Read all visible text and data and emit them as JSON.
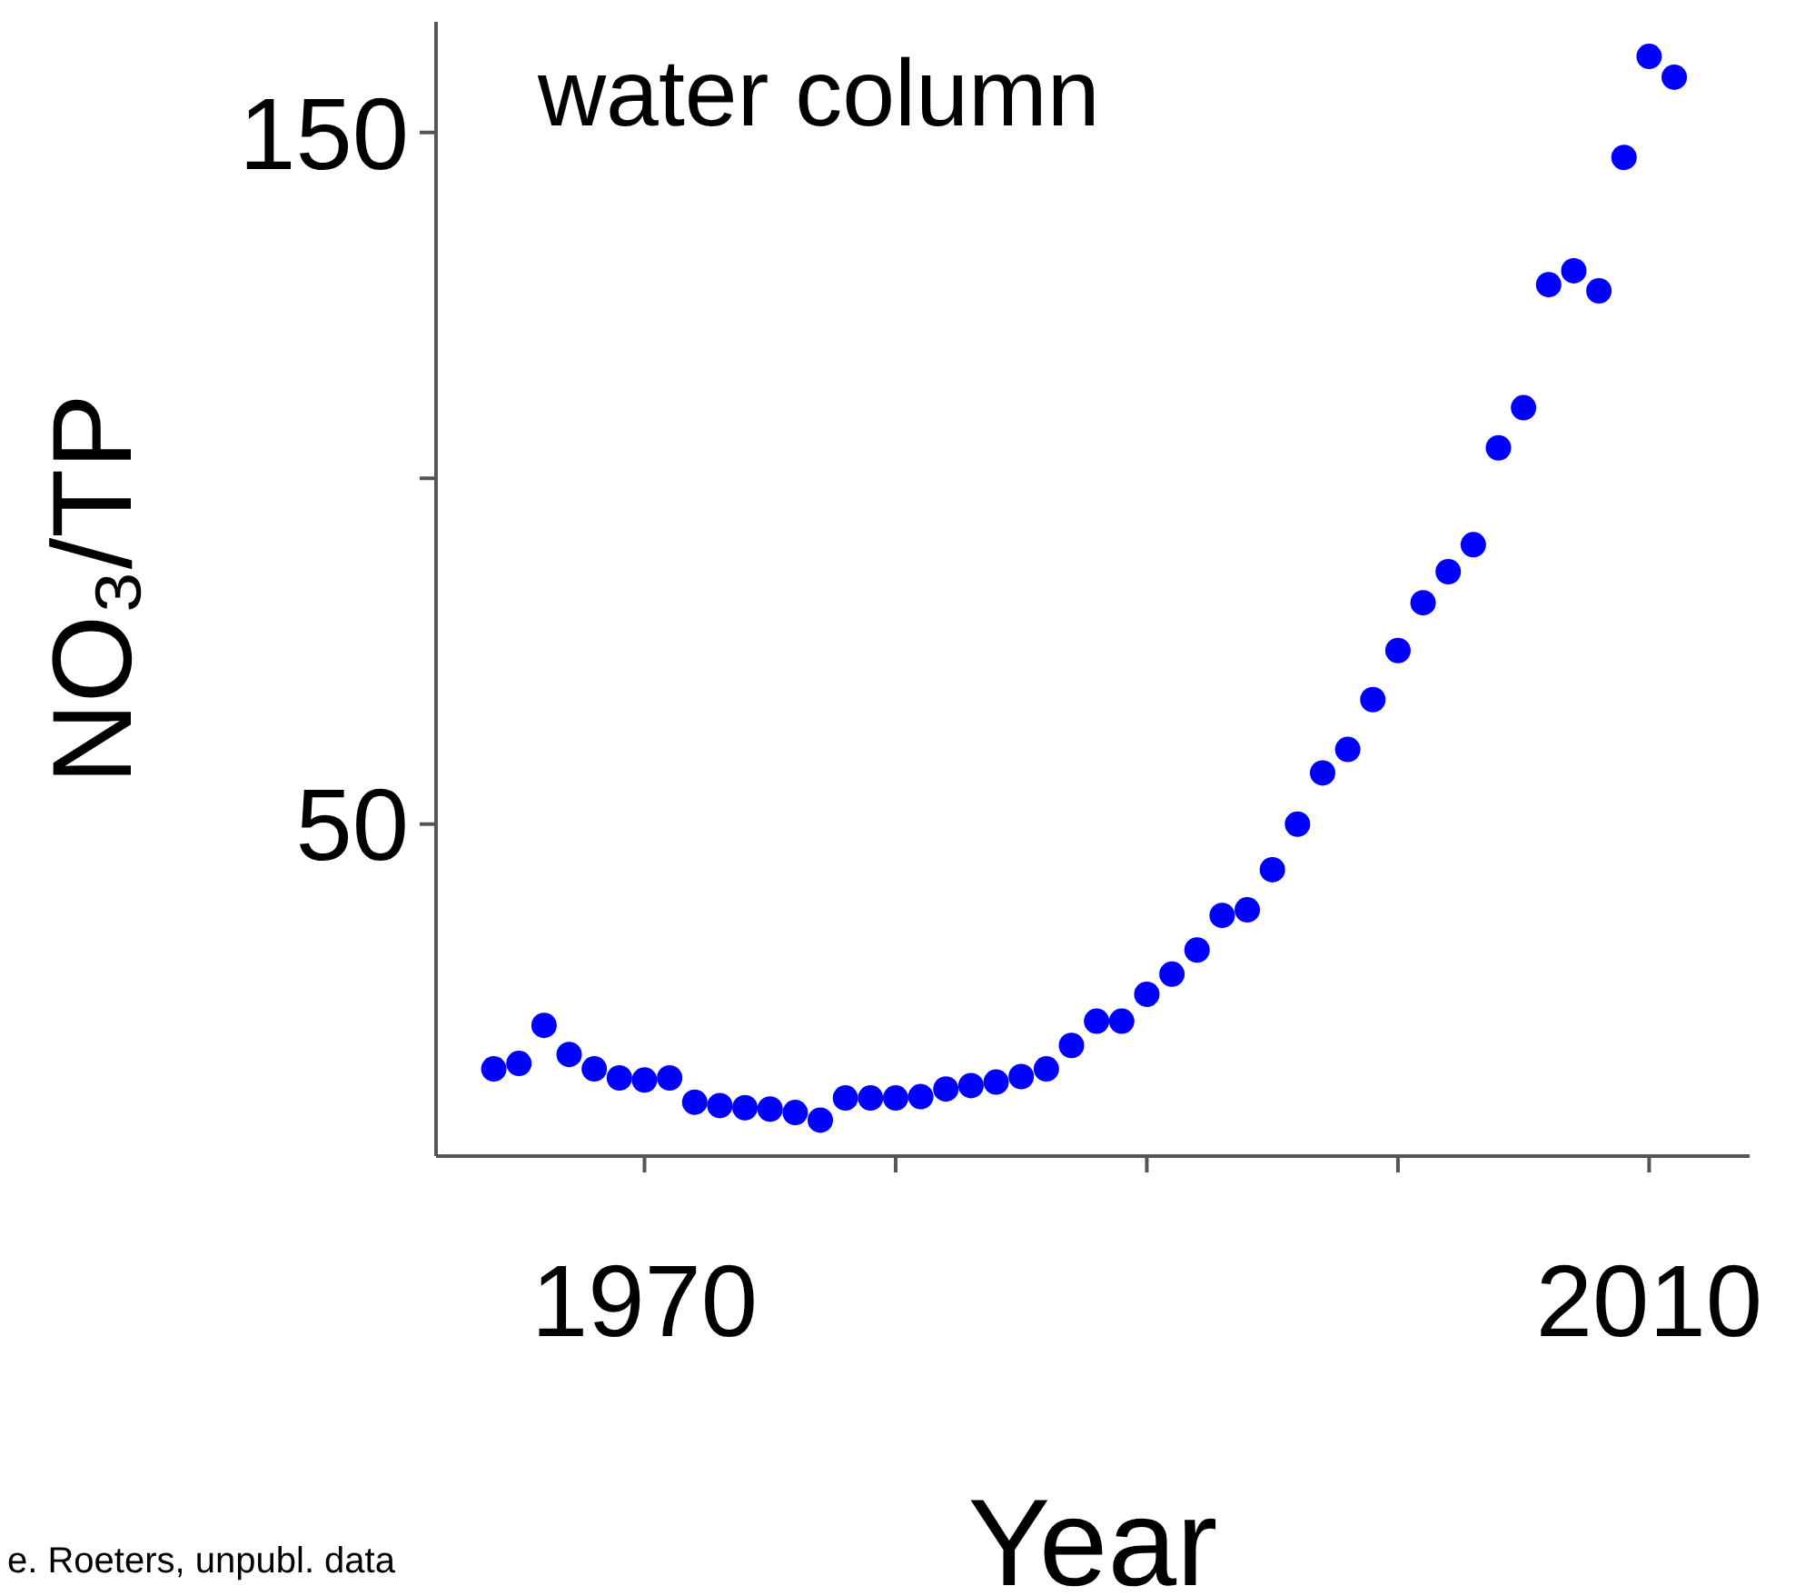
{
  "chart_data": {
    "type": "scatter",
    "title": "water column",
    "xlabel": "Year",
    "ylabel": "NO₃/TP",
    "annotations": [
      "e. Roeters, unpubl. data"
    ],
    "x": [
      1964,
      1965,
      1966,
      1967,
      1968,
      1969,
      1970,
      1971,
      1972,
      1973,
      1974,
      1975,
      1976,
      1977,
      1978,
      1979,
      1980,
      1981,
      1982,
      1983,
      1984,
      1985,
      1986,
      1987,
      1988,
      1989,
      1990,
      1991,
      1992,
      1993,
      1994,
      1995,
      1996,
      1997,
      1998,
      1999,
      2000,
      2001,
      2002,
      2003,
      2004,
      2005,
      2006,
      2007,
      2008,
      2009,
      2010,
      2011
    ],
    "series": [
      {
        "color": "#0000ff",
        "values": [
          14.6,
          15.4,
          20.9,
          16.7,
          14.6,
          13.3,
          13.0,
          13.3,
          9.8,
          9.3,
          9.0,
          8.8,
          8.3,
          7.2,
          10.4,
          10.4,
          10.4,
          10.6,
          11.7,
          12.2,
          12.7,
          13.5,
          14.6,
          18.0,
          21.5,
          21.5,
          25.4,
          28.3,
          31.8,
          36.8,
          37.6,
          43.4,
          50,
          57.4,
          60.8,
          68,
          75.1,
          82,
          86.5,
          90.4,
          104.4,
          110.2,
          128,
          130,
          127.1,
          146.4,
          161,
          158
        ]
      }
    ],
    "xlim": [
      1961.7,
      2014
    ],
    "xticks": [
      1970,
      {
        "value": 1980,
        "label": null
      },
      {
        "value": 1990,
        "label": null
      },
      {
        "value": 2000,
        "label": null
      },
      2010
    ],
    "ylim": [
      2,
      166
    ],
    "yticks": [
      50,
      {
        "value": 100,
        "label": null
      },
      150
    ],
    "grid": false,
    "legend": false,
    "marker": "circle"
  }
}
